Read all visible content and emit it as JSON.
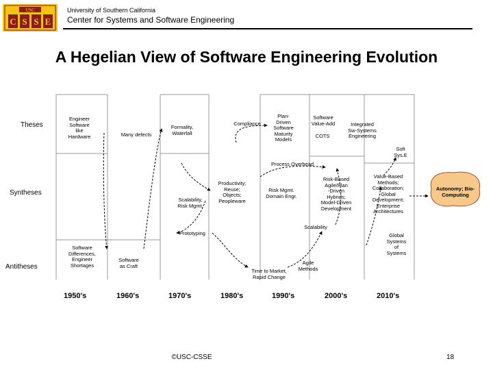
{
  "header": {
    "logo_text": "USC",
    "logo_letters": [
      "C",
      "S",
      "S",
      "E"
    ],
    "university": "University of Southern California",
    "center": "Center for Systems and Software Engineering"
  },
  "title": "A Hegelian View of Software Engineering Evolution",
  "rows": {
    "theses": "Theses",
    "syntheses": "Syntheses",
    "antitheses": "Antitheses"
  },
  "decades": [
    "1950's",
    "1960's",
    "1970's",
    "1980's",
    "1990's",
    "2000's",
    "2010's"
  ],
  "boxes": {
    "eng_sw_hw": [
      "Engineer",
      "Software",
      "like",
      "Hardware"
    ],
    "many_defects": [
      "Many defects"
    ],
    "formality": [
      "Formality,",
      "Waterfall"
    ],
    "compliance": [
      "Compliance"
    ],
    "plan_driven": [
      "Plan-",
      "Driven",
      "Software",
      "Maturity",
      "Models"
    ],
    "sw_value_add": [
      "Software",
      "Value-Add"
    ],
    "cots": [
      "COTS"
    ],
    "integrated": [
      "Integrated",
      "Sw-Systems",
      "Engineering"
    ],
    "soft_syse": [
      "Soft",
      "Sys.E"
    ],
    "process_overhead": [
      "Process Overhead"
    ],
    "productivity": [
      "Productivity;",
      "Reuse;",
      "Objects;",
      "Peopleware"
    ],
    "risk_domain": [
      "Risk Mgmt.",
      "Domain Engr."
    ],
    "risk_based": [
      "Risk-Based",
      "Agile/Plan",
      "-Driven",
      "Hybrids;",
      "Model-Driven",
      "Development"
    ],
    "value_based": [
      "Value-Based",
      "Methods;",
      "Collaboration;",
      "Global",
      "Development;",
      "Enterprise",
      "Architectures"
    ],
    "autonomy": [
      "Autonomy; Bio-",
      "Computing"
    ],
    "scalability_risk": [
      "Scalability,",
      "Risk Mgmt."
    ],
    "scalability": [
      "Scalability"
    ],
    "prototyping": [
      "Prototyping"
    ],
    "global_systems": [
      "Global",
      "Systems",
      "of",
      "Systems"
    ],
    "sw_differences": [
      "Software",
      "Differences,",
      "Engineer",
      "Shortages"
    ],
    "sw_as_craft": [
      "Software",
      "as Craft"
    ],
    "time_to_market": [
      "Time to Market,",
      "Rapid Change"
    ],
    "agile_methods": [
      "Agile",
      "Methods"
    ]
  },
  "footer": "©USC-CSSE",
  "page_number": "18",
  "colors": {
    "autonomy_fill": "#f6c88a",
    "logo_red": "#8b1d1d",
    "logo_gold": "#f2c417"
  }
}
